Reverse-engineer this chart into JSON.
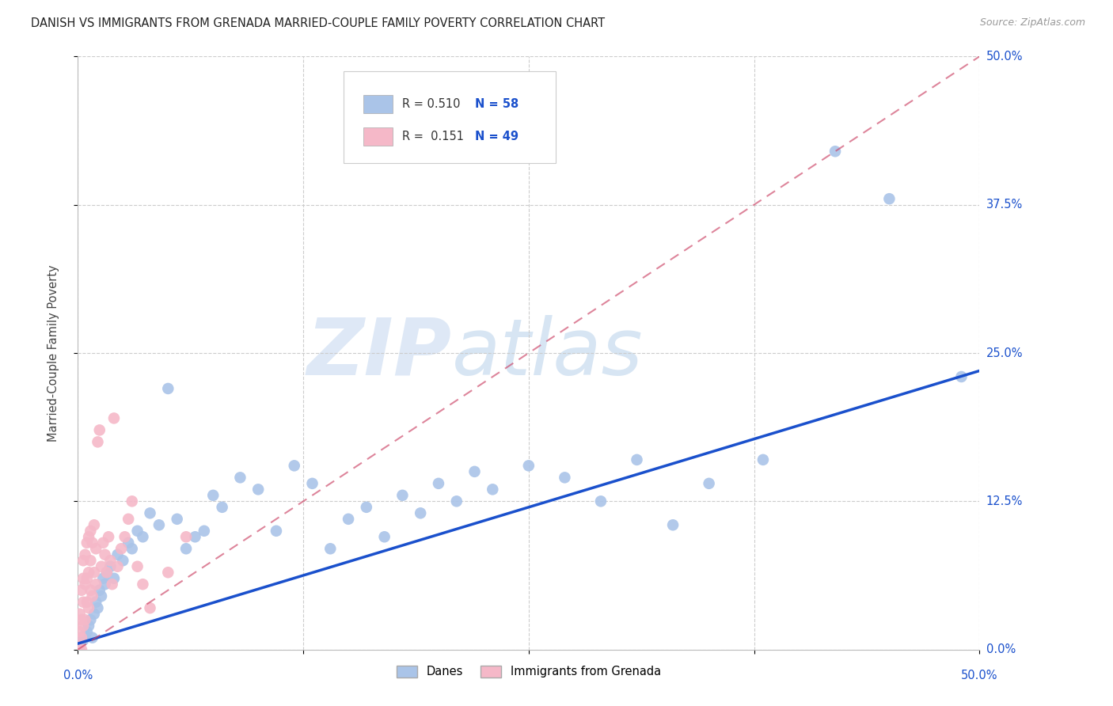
{
  "title": "DANISH VS IMMIGRANTS FROM GRENADA MARRIED-COUPLE FAMILY POVERTY CORRELATION CHART",
  "source": "Source: ZipAtlas.com",
  "ylabel": "Married-Couple Family Poverty",
  "ytick_labels": [
    "0.0%",
    "12.5%",
    "25.0%",
    "37.5%",
    "50.0%"
  ],
  "xlim": [
    0,
    0.5
  ],
  "ylim": [
    0,
    0.5
  ],
  "danes_color": "#aac4e8",
  "danes_line_color": "#1a50cc",
  "grenada_color": "#f5b8c8",
  "grenada_line_color": "#cc4466",
  "danes_R": 0.51,
  "danes_N": 58,
  "grenada_R": 0.151,
  "grenada_N": 49,
  "watermark_zip": "ZIP",
  "watermark_atlas": "atlas",
  "background_color": "#ffffff",
  "grid_color": "#cccccc",
  "danes_x": [
    0.001,
    0.002,
    0.003,
    0.004,
    0.005,
    0.006,
    0.007,
    0.008,
    0.009,
    0.01,
    0.011,
    0.012,
    0.013,
    0.014,
    0.015,
    0.016,
    0.018,
    0.02,
    0.022,
    0.025,
    0.028,
    0.03,
    0.033,
    0.036,
    0.04,
    0.045,
    0.05,
    0.055,
    0.06,
    0.065,
    0.07,
    0.075,
    0.08,
    0.09,
    0.1,
    0.11,
    0.12,
    0.13,
    0.14,
    0.15,
    0.16,
    0.17,
    0.18,
    0.19,
    0.2,
    0.21,
    0.22,
    0.23,
    0.25,
    0.27,
    0.29,
    0.31,
    0.33,
    0.35,
    0.38,
    0.42,
    0.45,
    0.49
  ],
  "danes_y": [
    0.005,
    0.01,
    0.008,
    0.012,
    0.015,
    0.02,
    0.025,
    0.01,
    0.03,
    0.04,
    0.035,
    0.05,
    0.045,
    0.06,
    0.055,
    0.065,
    0.07,
    0.06,
    0.08,
    0.075,
    0.09,
    0.085,
    0.1,
    0.095,
    0.115,
    0.105,
    0.22,
    0.11,
    0.085,
    0.095,
    0.1,
    0.13,
    0.12,
    0.145,
    0.135,
    0.1,
    0.155,
    0.14,
    0.085,
    0.11,
    0.12,
    0.095,
    0.13,
    0.115,
    0.14,
    0.125,
    0.15,
    0.135,
    0.155,
    0.145,
    0.125,
    0.16,
    0.105,
    0.14,
    0.16,
    0.42,
    0.38,
    0.23
  ],
  "grenada_x": [
    0.001,
    0.001,
    0.001,
    0.002,
    0.002,
    0.002,
    0.002,
    0.003,
    0.003,
    0.003,
    0.003,
    0.004,
    0.004,
    0.004,
    0.005,
    0.005,
    0.005,
    0.006,
    0.006,
    0.006,
    0.007,
    0.007,
    0.007,
    0.008,
    0.008,
    0.009,
    0.009,
    0.01,
    0.01,
    0.011,
    0.012,
    0.013,
    0.014,
    0.015,
    0.016,
    0.017,
    0.018,
    0.019,
    0.02,
    0.022,
    0.024,
    0.026,
    0.028,
    0.03,
    0.033,
    0.036,
    0.04,
    0.05,
    0.06
  ],
  "grenada_y": [
    0.0,
    0.015,
    0.03,
    0.0,
    0.01,
    0.025,
    0.05,
    0.02,
    0.04,
    0.06,
    0.075,
    0.025,
    0.055,
    0.08,
    0.04,
    0.06,
    0.09,
    0.035,
    0.065,
    0.095,
    0.05,
    0.075,
    0.1,
    0.045,
    0.09,
    0.065,
    0.105,
    0.055,
    0.085,
    0.175,
    0.185,
    0.07,
    0.09,
    0.08,
    0.065,
    0.095,
    0.075,
    0.055,
    0.195,
    0.07,
    0.085,
    0.095,
    0.11,
    0.125,
    0.07,
    0.055,
    0.035,
    0.065,
    0.095
  ]
}
